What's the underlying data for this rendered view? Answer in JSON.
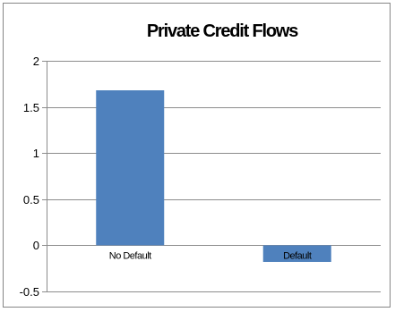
{
  "chart_data": {
    "type": "bar",
    "title": "Private Credit Flows",
    "categories": [
      "No Default",
      "Default"
    ],
    "values": [
      1.68,
      -0.18
    ],
    "xlabel": "",
    "ylabel": "",
    "ylim": [
      -0.5,
      2
    ],
    "yticks": [
      -0.5,
      0,
      0.5,
      1,
      1.5,
      2
    ],
    "ytick_labels": [
      "-0.5",
      "0",
      "0.5",
      "1",
      "1.5",
      "2"
    ],
    "grid": true,
    "legend": "none",
    "bar_color": "#4f81bd"
  }
}
